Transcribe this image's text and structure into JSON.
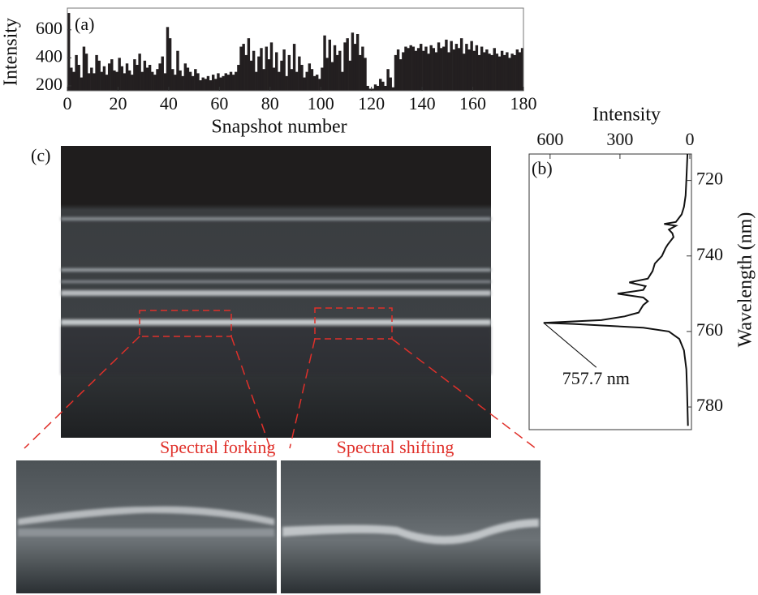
{
  "chart_data": [
    {
      "type": "bar",
      "panel_label": "(a)",
      "xlabel": "Snapshot number",
      "ylabel": "Intensity",
      "color": "#231f20",
      "x": [
        1,
        2,
        3,
        4,
        5,
        6,
        7,
        8,
        9,
        10,
        11,
        12,
        13,
        14,
        15,
        16,
        17,
        18,
        19,
        20,
        21,
        22,
        23,
        24,
        25,
        26,
        27,
        28,
        29,
        30,
        31,
        32,
        33,
        34,
        35,
        36,
        37,
        38,
        39,
        40,
        41,
        42,
        43,
        44,
        45,
        46,
        47,
        48,
        49,
        50,
        51,
        52,
        53,
        54,
        55,
        56,
        57,
        58,
        59,
        60,
        61,
        62,
        63,
        64,
        65,
        66,
        67,
        68,
        69,
        70,
        71,
        72,
        73,
        74,
        75,
        76,
        77,
        78,
        79,
        80,
        81,
        82,
        83,
        84,
        85,
        86,
        87,
        88,
        89,
        90,
        91,
        92,
        93,
        94,
        95,
        96,
        97,
        98,
        99,
        100,
        101,
        102,
        103,
        104,
        105,
        106,
        107,
        108,
        109,
        110,
        111,
        112,
        113,
        114,
        115,
        116,
        117,
        118,
        119,
        120,
        121,
        122,
        123,
        124,
        125,
        126,
        127,
        128,
        129,
        130,
        131,
        132,
        133,
        134,
        135,
        136,
        137,
        138,
        139,
        140,
        141,
        142,
        143,
        144,
        145,
        146,
        147,
        148,
        149,
        150,
        151,
        152,
        153,
        154,
        155,
        156,
        157,
        158,
        159,
        160,
        161,
        162,
        163,
        164,
        165,
        166,
        167,
        168,
        169,
        170,
        171,
        172,
        173,
        174,
        175,
        176,
        177,
        178,
        179,
        180
      ],
      "values": [
        720,
        330,
        300,
        420,
        350,
        260,
        480,
        430,
        290,
        330,
        290,
        420,
        380,
        300,
        340,
        280,
        360,
        390,
        310,
        300,
        400,
        340,
        290,
        360,
        310,
        280,
        390,
        350,
        430,
        300,
        380,
        330,
        350,
        300,
        280,
        320,
        360,
        410,
        290,
        620,
        540,
        320,
        280,
        450,
        310,
        270,
        360,
        330,
        300,
        270,
        320,
        290,
        240,
        260,
        250,
        270,
        240,
        280,
        250,
        290,
        260,
        270,
        290,
        280,
        300,
        280,
        300,
        350,
        480,
        500,
        420,
        540,
        380,
        450,
        300,
        410,
        470,
        320,
        480,
        390,
        510,
        330,
        440,
        300,
        380,
        460,
        270,
        420,
        320,
        500,
        300,
        410,
        350,
        260,
        300,
        360,
        320,
        270,
        280,
        250,
        330,
        560,
        400,
        530,
        370,
        490,
        420,
        450,
        300,
        510,
        540,
        380,
        580,
        500,
        570,
        420,
        480,
        400,
        200,
        180,
        180,
        210,
        200,
        250,
        230,
        200,
        320,
        260,
        190,
        420,
        460,
        390,
        440,
        480,
        470,
        490,
        480,
        450,
        470,
        500,
        450,
        480,
        430,
        490,
        470,
        440,
        510,
        470,
        480,
        530,
        440,
        520,
        460,
        500,
        470,
        540,
        430,
        500,
        460,
        520,
        450,
        490,
        420,
        480,
        440,
        460,
        430,
        420,
        470,
        430,
        410,
        450,
        420,
        440,
        400,
        430,
        420,
        460,
        440,
        470
      ],
      "xlim": [
        0,
        180
      ],
      "xticks": [
        0,
        20,
        40,
        60,
        80,
        100,
        120,
        140,
        160,
        180
      ],
      "ylim": [
        165,
        755
      ],
      "yticks": [
        200,
        400,
        600
      ]
    },
    {
      "type": "line",
      "panel_label": "(b)",
      "xlabel": "Intensity",
      "ylabel": "Wavelength (nm)",
      "color": "#111111",
      "wavelength": [
        713,
        716,
        720,
        724,
        727,
        729,
        731,
        731.5,
        732,
        733,
        734,
        735,
        737,
        738,
        740,
        742,
        744,
        746,
        747,
        748,
        749,
        750,
        751,
        752,
        753,
        754,
        755,
        755.5,
        756,
        757,
        757.7,
        758,
        759,
        760,
        762,
        765,
        770,
        775,
        780,
        785
      ],
      "values": [
        10,
        12,
        15,
        18,
        25,
        35,
        60,
        110,
        60,
        90,
        75,
        70,
        95,
        105,
        120,
        150,
        160,
        180,
        260,
        190,
        200,
        310,
        200,
        180,
        200,
        210,
        220,
        250,
        280,
        380,
        628,
        500,
        200,
        90,
        45,
        25,
        15,
        12,
        10,
        8
      ],
      "xlim": [
        690,
        -7
      ],
      "xticks": [
        600,
        300,
        0
      ],
      "ylim": [
        713,
        786
      ],
      "yticks": [
        720,
        740,
        760,
        780
      ],
      "annotation": "757.7 nm"
    }
  ],
  "spectrogram": {
    "panel_label": "(c)",
    "insets": [
      "Spectral forking",
      "Spectral shifting"
    ]
  }
}
